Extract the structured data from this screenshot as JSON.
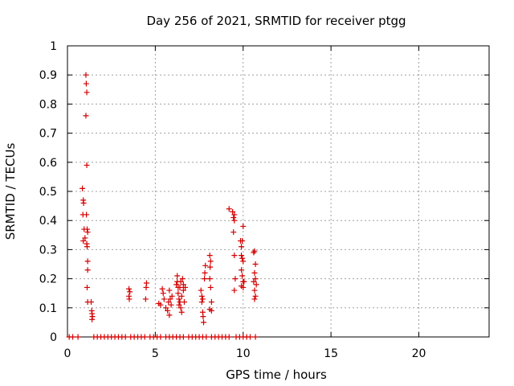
{
  "chart_data": {
    "type": "scatter",
    "title": "Day 256 of 2021, SRMTID for receiver ptgg",
    "xlabel": "GPS time / hours",
    "ylabel": "SRMTID / TECUs",
    "xlim": [
      0,
      24
    ],
    "ylim": [
      0,
      1
    ],
    "xticks": [
      0,
      5,
      10,
      15,
      20
    ],
    "xtick_labels": [
      "0",
      "5",
      "10",
      "15",
      "20"
    ],
    "yticks": [
      0,
      0.1,
      0.2,
      0.3,
      0.4,
      0.5,
      0.6,
      0.7,
      0.8,
      0.9,
      1
    ],
    "ytick_labels": [
      "0",
      "0.1",
      "0.2",
      "0.3",
      "0.4",
      "0.5",
      "0.6",
      "0.7",
      "0.8",
      "0.9",
      "1"
    ],
    "grid": true,
    "marker": "+",
    "color": "#d40000",
    "series": [
      {
        "name": "SRMTID",
        "points": [
          [
            0.85,
            0.51
          ],
          [
            0.9,
            0.47
          ],
          [
            0.92,
            0.46
          ],
          [
            0.88,
            0.42
          ],
          [
            0.95,
            0.37
          ],
          [
            0.9,
            0.33
          ],
          [
            1.0,
            0.34
          ],
          [
            1.05,
            0.9
          ],
          [
            1.07,
            0.87
          ],
          [
            1.1,
            0.84
          ],
          [
            1.05,
            0.76
          ],
          [
            1.1,
            0.59
          ],
          [
            1.08,
            0.42
          ],
          [
            1.12,
            0.37
          ],
          [
            1.15,
            0.36
          ],
          [
            1.1,
            0.32
          ],
          [
            1.12,
            0.31
          ],
          [
            1.15,
            0.26
          ],
          [
            1.15,
            0.23
          ],
          [
            1.12,
            0.17
          ],
          [
            1.15,
            0.12
          ],
          [
            1.35,
            0.12
          ],
          [
            1.38,
            0.09
          ],
          [
            1.4,
            0.08
          ],
          [
            1.42,
            0.07
          ],
          [
            1.4,
            0.06
          ],
          [
            3.5,
            0.165
          ],
          [
            3.55,
            0.155
          ],
          [
            3.5,
            0.14
          ],
          [
            3.52,
            0.13
          ],
          [
            4.5,
            0.185
          ],
          [
            4.48,
            0.17
          ],
          [
            4.45,
            0.13
          ],
          [
            5.2,
            0.115
          ],
          [
            5.3,
            0.11
          ],
          [
            5.4,
            0.165
          ],
          [
            5.45,
            0.15
          ],
          [
            5.5,
            0.13
          ],
          [
            5.6,
            0.1
          ],
          [
            5.7,
            0.09
          ],
          [
            5.75,
            0.12
          ],
          [
            5.8,
            0.16
          ],
          [
            5.85,
            0.13
          ],
          [
            5.9,
            0.11
          ],
          [
            5.8,
            0.075
          ],
          [
            5.95,
            0.14
          ],
          [
            6.2,
            0.18
          ],
          [
            6.25,
            0.19
          ],
          [
            6.3,
            0.17
          ],
          [
            6.3,
            0.15
          ],
          [
            6.35,
            0.13
          ],
          [
            6.4,
            0.12
          ],
          [
            6.4,
            0.17
          ],
          [
            6.45,
            0.19
          ],
          [
            6.45,
            0.1
          ],
          [
            6.5,
            0.085
          ],
          [
            6.5,
            0.14
          ],
          [
            6.55,
            0.2
          ],
          [
            6.6,
            0.18
          ],
          [
            6.6,
            0.16
          ],
          [
            6.65,
            0.12
          ],
          [
            6.7,
            0.17
          ],
          [
            6.25,
            0.21
          ],
          [
            6.35,
            0.11
          ],
          [
            7.6,
            0.16
          ],
          [
            7.65,
            0.14
          ],
          [
            7.7,
            0.13
          ],
          [
            7.65,
            0.12
          ],
          [
            7.7,
            0.085
          ],
          [
            7.72,
            0.07
          ],
          [
            7.75,
            0.05
          ],
          [
            7.8,
            0.2
          ],
          [
            7.82,
            0.22
          ],
          [
            7.85,
            0.245
          ],
          [
            8.1,
            0.28
          ],
          [
            8.15,
            0.26
          ],
          [
            8.12,
            0.24
          ],
          [
            8.1,
            0.2
          ],
          [
            8.15,
            0.17
          ],
          [
            8.2,
            0.12
          ],
          [
            8.1,
            0.095
          ],
          [
            8.2,
            0.09
          ],
          [
            9.2,
            0.44
          ],
          [
            9.4,
            0.43
          ],
          [
            9.5,
            0.42
          ],
          [
            9.45,
            0.41
          ],
          [
            9.5,
            0.4
          ],
          [
            9.45,
            0.36
          ],
          [
            9.5,
            0.28
          ],
          [
            9.55,
            0.2
          ],
          [
            9.5,
            0.16
          ],
          [
            9.85,
            0.33
          ],
          [
            9.9,
            0.31
          ],
          [
            9.95,
            0.33
          ],
          [
            10.0,
            0.38
          ],
          [
            9.9,
            0.28
          ],
          [
            9.95,
            0.27
          ],
          [
            10.0,
            0.26
          ],
          [
            9.9,
            0.23
          ],
          [
            9.95,
            0.21
          ],
          [
            10.0,
            0.19
          ],
          [
            9.9,
            0.175
          ],
          [
            10.0,
            0.17
          ],
          [
            10.05,
            0.19
          ],
          [
            10.6,
            0.29
          ],
          [
            10.65,
            0.295
          ],
          [
            10.7,
            0.25
          ],
          [
            10.65,
            0.22
          ],
          [
            10.7,
            0.2
          ],
          [
            10.6,
            0.19
          ],
          [
            10.75,
            0.18
          ],
          [
            10.65,
            0.16
          ],
          [
            10.7,
            0.14
          ],
          [
            10.65,
            0.13
          ],
          [
            0.1,
            0
          ],
          [
            0.3,
            0
          ],
          [
            0.6,
            0
          ],
          [
            1.5,
            0
          ],
          [
            1.7,
            0
          ],
          [
            1.9,
            0
          ],
          [
            2.1,
            0
          ],
          [
            2.3,
            0
          ],
          [
            2.5,
            0
          ],
          [
            2.7,
            0
          ],
          [
            2.9,
            0
          ],
          [
            3.1,
            0
          ],
          [
            3.3,
            0
          ],
          [
            3.6,
            0
          ],
          [
            3.8,
            0
          ],
          [
            4.0,
            0
          ],
          [
            4.2,
            0
          ],
          [
            4.4,
            0
          ],
          [
            4.7,
            0
          ],
          [
            4.9,
            0
          ],
          [
            5.1,
            0
          ],
          [
            5.3,
            0
          ],
          [
            5.6,
            0
          ],
          [
            5.8,
            0
          ],
          [
            6.0,
            0
          ],
          [
            6.2,
            0
          ],
          [
            6.4,
            0
          ],
          [
            6.6,
            0
          ],
          [
            6.9,
            0
          ],
          [
            7.1,
            0
          ],
          [
            7.3,
            0
          ],
          [
            7.5,
            0
          ],
          [
            7.7,
            0
          ],
          [
            7.9,
            0
          ],
          [
            8.2,
            0
          ],
          [
            8.4,
            0
          ],
          [
            8.6,
            0
          ],
          [
            8.8,
            0
          ],
          [
            9.0,
            0
          ],
          [
            9.2,
            0
          ],
          [
            9.6,
            0
          ],
          [
            9.8,
            0
          ],
          [
            10.0,
            0
          ],
          [
            10.2,
            0
          ],
          [
            10.4,
            0
          ],
          [
            10.7,
            0
          ]
        ]
      }
    ]
  }
}
